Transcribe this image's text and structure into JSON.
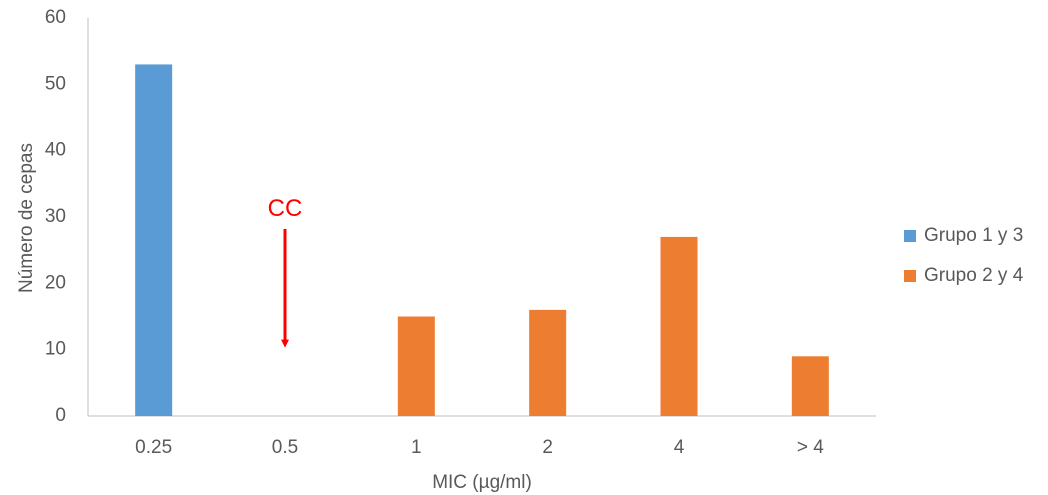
{
  "chart_data": {
    "type": "bar",
    "categories": [
      "0.25",
      "0.5",
      "1",
      "2",
      "4",
      "> 4"
    ],
    "series": [
      {
        "name": "Grupo 1 y 3",
        "color": "#5B9BD5",
        "values": [
          53,
          0,
          0,
          0,
          0,
          0
        ]
      },
      {
        "name": "Grupo 2 y 4",
        "color": "#ED7D31",
        "values": [
          0,
          0,
          15,
          16,
          27,
          9
        ]
      }
    ],
    "title": "",
    "xlabel": "MIC (µg/ml)",
    "ylabel": "Número de cepas",
    "ylim": [
      0,
      60
    ],
    "yticks": [
      0,
      10,
      20,
      30,
      40,
      50,
      60
    ],
    "grid": false,
    "legend_position": "right",
    "annotation": {
      "text": "CC",
      "category": "0.5",
      "points_to_value": 10,
      "color": "#FF0000"
    }
  }
}
